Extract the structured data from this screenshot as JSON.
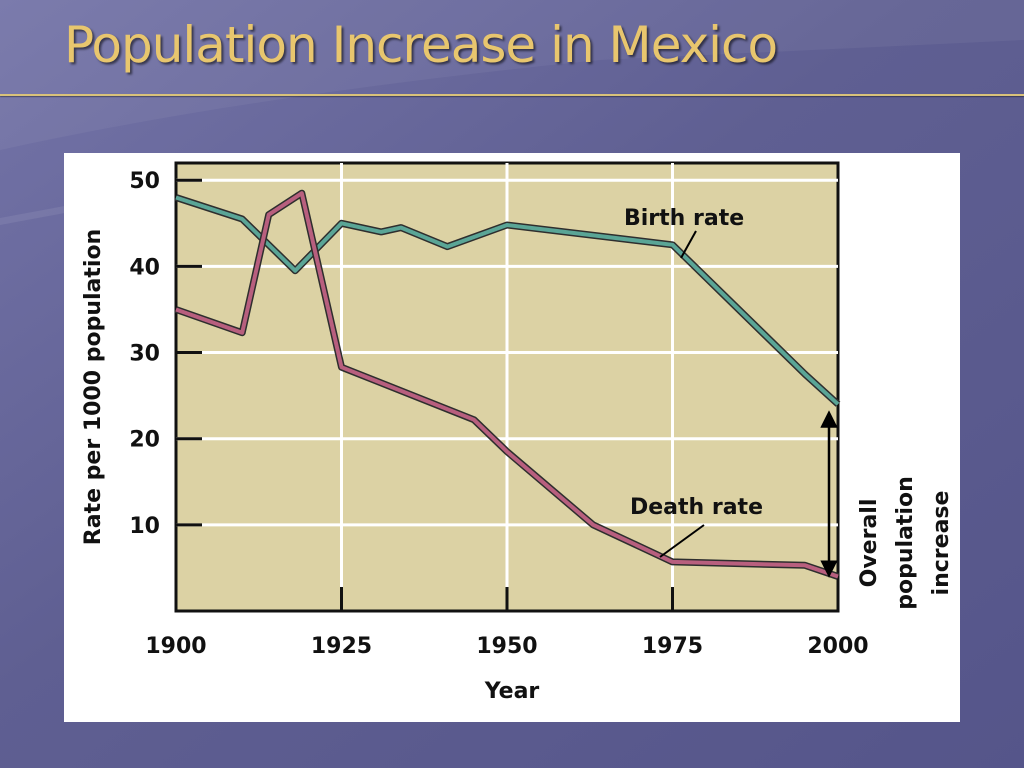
{
  "slide": {
    "title": "Population Increase in Mexico",
    "colors": {
      "background": "#5c5c8e",
      "title": "#e8c66e",
      "plot_area": "#dcd2a4"
    }
  },
  "chart_data": {
    "type": "line",
    "title": "",
    "xlabel": "Year",
    "ylabel": "Rate per 1000 population",
    "xlim": [
      1900,
      2000
    ],
    "ylim": [
      0,
      52
    ],
    "x_ticks": [
      1900,
      1925,
      1950,
      1975,
      2000
    ],
    "y_ticks": [
      10,
      20,
      30,
      40,
      50
    ],
    "grid": true,
    "series": [
      {
        "name": "Birth rate",
        "color": "#5aa596",
        "points": [
          [
            1900,
            48
          ],
          [
            1910,
            45.5
          ],
          [
            1918,
            39.5
          ],
          [
            1925,
            45
          ],
          [
            1931,
            44
          ],
          [
            1934,
            44.5
          ],
          [
            1941,
            42.3
          ],
          [
            1950,
            44.8
          ],
          [
            1975,
            42.5
          ],
          [
            1995,
            27.5
          ],
          [
            2000,
            24
          ]
        ]
      },
      {
        "name": "Death rate",
        "color": "#b85f7e",
        "points": [
          [
            1900,
            35
          ],
          [
            1910,
            32.3
          ],
          [
            1914,
            46
          ],
          [
            1919,
            48.5
          ],
          [
            1925,
            28.3
          ],
          [
            1945,
            22.2
          ],
          [
            1950,
            18.5
          ],
          [
            1963,
            10
          ],
          [
            1975,
            5.7
          ],
          [
            1995,
            5.3
          ],
          [
            2000,
            4
          ]
        ]
      }
    ],
    "annotations": [
      {
        "text_lines": [
          "Overall",
          "population",
          "increase"
        ],
        "from": [
          2000,
          4
        ],
        "to": [
          2000,
          24
        ]
      }
    ]
  }
}
